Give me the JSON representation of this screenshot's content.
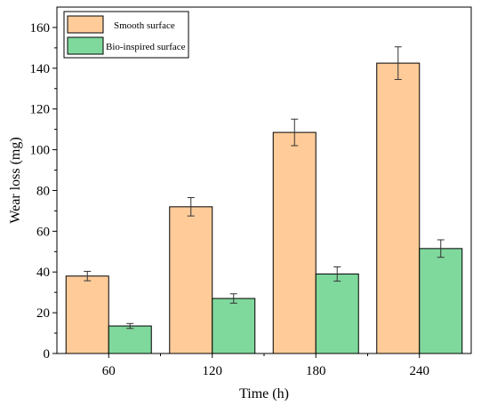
{
  "chart_data": {
    "type": "bar",
    "categories": [
      "60",
      "120",
      "180",
      "240"
    ],
    "xlabel": "Time (h)",
    "ylabel": "Wear loss (mg)",
    "ylim": [
      0,
      170
    ],
    "yticks": [
      0,
      20,
      40,
      60,
      80,
      100,
      120,
      140,
      160
    ],
    "legend_position": "top-left",
    "grid": false,
    "series": [
      {
        "name": "Smooth surface",
        "color": "#FFCC99",
        "values": [
          38,
          72,
          108.5,
          142.5
        ],
        "errors": [
          2.3,
          4.5,
          6.5,
          8
        ]
      },
      {
        "name": "Bio-inspired surface",
        "color": "#7FD89C",
        "values": [
          13.5,
          27,
          39,
          51.5
        ],
        "errors": [
          1.2,
          2.3,
          3.5,
          4.3
        ]
      }
    ]
  }
}
